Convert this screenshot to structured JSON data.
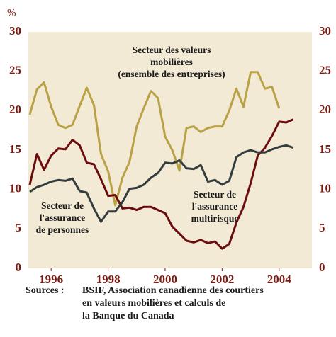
{
  "chart_data": {
    "type": "line",
    "y_unit": "%",
    "x": [
      1995.25,
      1995.5,
      1995.75,
      1996,
      1996.25,
      1996.5,
      1996.75,
      1997,
      1997.25,
      1997.5,
      1997.75,
      1998,
      1998.25,
      1998.5,
      1998.75,
      1999,
      1999.25,
      1999.5,
      1999.75,
      2000,
      2000.25,
      2000.5,
      2000.75,
      2001,
      2001.25,
      2001.5,
      2001.75,
      2002,
      2002.25,
      2002.5,
      2002.75,
      2003,
      2003.25,
      2003.5,
      2003.75,
      2004,
      2004.25,
      2004.5
    ],
    "series": [
      {
        "name": "Secteur des valeurs mobilières (ensemble des entreprises)",
        "color": "#b9a245",
        "values": [
          19.5,
          22.7,
          23.6,
          20.5,
          18.2,
          17.8,
          18.2,
          20.6,
          22.9,
          20.7,
          14.5,
          12.3,
          8.0,
          11.5,
          13.5,
          18.0,
          20.3,
          22.5,
          21.6,
          16.7,
          15.0,
          12.4,
          17.8,
          18.0,
          17.3,
          17.8,
          18.0,
          18.0,
          20.0,
          22.8,
          20.5,
          24.9,
          24.9,
          22.8,
          23.0,
          20.3,
          null,
          null
        ]
      },
      {
        "name": "Secteur de l'assurance multirisque",
        "color": "#6b0c0c",
        "values": [
          10.6,
          14.5,
          12.5,
          14.3,
          15.2,
          15.1,
          16.3,
          15.6,
          13.4,
          13.2,
          11.3,
          9.2,
          9.3,
          7.6,
          7.7,
          7.4,
          7.8,
          7.8,
          7.4,
          7.0,
          5.3,
          4.4,
          3.5,
          3.3,
          3.6,
          3.2,
          3.4,
          2.5,
          3.1,
          5.8,
          7.8,
          10.8,
          14.3,
          15.3,
          16.8,
          18.6,
          18.5,
          18.9
        ]
      },
      {
        "name": "Secteur de l'assurance de personnes",
        "color": "#343d3d",
        "values": [
          9.7,
          10.3,
          10.6,
          11.0,
          11.2,
          11.1,
          11.4,
          9.8,
          9.6,
          7.6,
          5.9,
          7.2,
          7.2,
          8.4,
          10.1,
          10.2,
          10.6,
          11.5,
          12.1,
          13.4,
          13.3,
          13.7,
          12.7,
          12.6,
          13.1,
          11.0,
          11.2,
          10.6,
          11.1,
          14.1,
          14.7,
          15.0,
          14.7,
          14.7,
          15.1,
          15.4,
          15.6,
          15.3
        ]
      }
    ],
    "annotations": [
      {
        "lines": [
          "Secteur des valeurs",
          "mobilières",
          "(ensemble des entreprises)"
        ]
      },
      {
        "lines": [
          "Secteur de",
          "l'assurance",
          "de personnes"
        ]
      },
      {
        "lines": [
          "Secteur de",
          "l'assurance",
          "multirisque"
        ]
      }
    ],
    "xlim": [
      1995.2,
      2005.15
    ],
    "xticks": [
      1996,
      1998,
      2000,
      2002,
      2004
    ],
    "ylim": [
      0,
      30
    ],
    "yticks": [
      0,
      5,
      10,
      15,
      20,
      25,
      30
    ],
    "y2lim": [
      0,
      30
    ],
    "y2ticks": [
      0,
      5,
      10,
      15,
      20,
      25,
      30
    ],
    "background": "#f3ead6",
    "source_label": "Sources :",
    "source": [
      "BSIF, Association canadienne des courtiers",
      "en valeurs mobilières et calculs de",
      "la Banque du Canada"
    ]
  }
}
